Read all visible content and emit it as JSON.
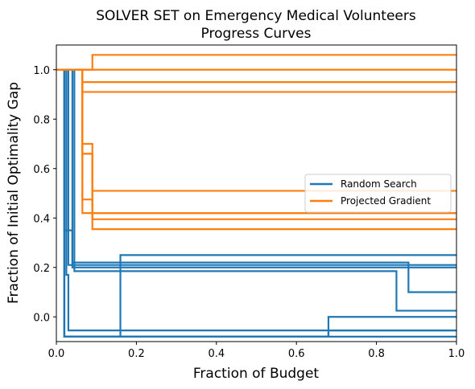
{
  "chart_data": {
    "type": "line",
    "title_line1": "SOLVER SET on Emergency Medical Volunteers",
    "title_line2": "Progress Curves",
    "xlabel": "Fraction of Budget",
    "ylabel": "Fraction of Initial Optimality Gap",
    "xlim": [
      0,
      1
    ],
    "ylim": [
      -0.1,
      1.1
    ],
    "x_ticks": [
      "0.0",
      "0.2",
      "0.4",
      "0.6",
      "0.8",
      "1.0"
    ],
    "x_tick_values": [
      0,
      0.2,
      0.4,
      0.6,
      0.8,
      1.0
    ],
    "y_ticks": [
      "0.0",
      "0.2",
      "0.4",
      "0.6",
      "0.8",
      "1.0"
    ],
    "y_tick_values": [
      0,
      0.2,
      0.4,
      0.6,
      0.8,
      1.0
    ],
    "grid": false,
    "legend_position": "center-right",
    "series": [
      {
        "name": "Random Search",
        "color": "#1f77b4",
        "curves": [
          [
            [
              0,
              1.0
            ],
            [
              0.02,
              1.0
            ],
            [
              0.02,
              -0.08
            ],
            [
              0.4,
              -0.08
            ],
            [
              0.4,
              -0.08
            ],
            [
              1.0,
              -0.08
            ]
          ],
          [
            [
              0,
              1.0
            ],
            [
              0.025,
              1.0
            ],
            [
              0.025,
              0.17
            ],
            [
              0.03,
              0.17
            ],
            [
              0.03,
              -0.055
            ],
            [
              0.16,
              -0.055
            ],
            [
              0.16,
              -0.055
            ],
            [
              1.0,
              -0.055
            ]
          ],
          [
            [
              0,
              1.0
            ],
            [
              0.02,
              1.0
            ],
            [
              0.02,
              0.35
            ],
            [
              0.04,
              0.35
            ],
            [
              0.04,
              0.22
            ],
            [
              0.88,
              0.22
            ],
            [
              0.88,
              0.1
            ],
            [
              1.0,
              0.1
            ]
          ],
          [
            [
              0,
              1.0
            ],
            [
              0.03,
              1.0
            ],
            [
              0.03,
              0.21
            ],
            [
              1.0,
              0.21
            ]
          ],
          [
            [
              0,
              1.0
            ],
            [
              0.04,
              1.0
            ],
            [
              0.04,
              0.2
            ],
            [
              0.88,
              0.2
            ],
            [
              1.0,
              0.2
            ]
          ],
          [
            [
              0,
              1.0
            ],
            [
              0.045,
              1.0
            ],
            [
              0.045,
              0.185
            ],
            [
              0.85,
              0.185
            ],
            [
              0.85,
              0.025
            ],
            [
              1.0,
              0.025
            ]
          ],
          [
            [
              0,
              1.0
            ],
            [
              0.02,
              1.0
            ],
            [
              0.02,
              -0.08
            ],
            [
              0.16,
              -0.08
            ],
            [
              0.16,
              0.25
            ],
            [
              1.0,
              0.25
            ]
          ],
          [
            [
              0,
              1.0
            ],
            [
              0.02,
              1.0
            ],
            [
              0.02,
              -0.08
            ],
            [
              0.68,
              -0.08
            ],
            [
              0.68,
              0.0
            ],
            [
              1.0,
              0.0
            ]
          ],
          [
            [
              0,
              1.0
            ],
            [
              0.02,
              1.0
            ],
            [
              0.02,
              -0.08
            ],
            [
              0.68,
              -0.08
            ],
            [
              0.68,
              -0.055
            ],
            [
              1.0,
              -0.055
            ]
          ]
        ]
      },
      {
        "name": "Projected Gradient",
        "color": "#ff7f0e",
        "curves": [
          [
            [
              0,
              1.0
            ],
            [
              0.09,
              1.0
            ],
            [
              0.09,
              1.06
            ],
            [
              1.0,
              1.06
            ]
          ],
          [
            [
              0,
              1.0
            ],
            [
              1.0,
              1.0
            ]
          ],
          [
            [
              0,
              1.0
            ],
            [
              0.065,
              1.0
            ],
            [
              0.065,
              0.95
            ],
            [
              1.0,
              0.95
            ]
          ],
          [
            [
              0,
              1.0
            ],
            [
              0.065,
              1.0
            ],
            [
              0.065,
              0.91
            ],
            [
              1.0,
              0.91
            ]
          ],
          [
            [
              0,
              1.0
            ],
            [
              0.065,
              1.0
            ],
            [
              0.065,
              0.7
            ],
            [
              0.09,
              0.7
            ],
            [
              0.09,
              0.51
            ],
            [
              1.0,
              0.51
            ]
          ],
          [
            [
              0,
              1.0
            ],
            [
              0.065,
              1.0
            ],
            [
              0.065,
              0.66
            ],
            [
              0.09,
              0.66
            ],
            [
              0.09,
              0.42
            ],
            [
              1.0,
              0.42
            ]
          ],
          [
            [
              0,
              1.0
            ],
            [
              0.065,
              1.0
            ],
            [
              0.065,
              0.42
            ],
            [
              1.0,
              0.42
            ]
          ],
          [
            [
              0,
              1.0
            ],
            [
              0.065,
              1.0
            ],
            [
              0.065,
              0.475
            ],
            [
              0.09,
              0.475
            ],
            [
              0.09,
              0.395
            ],
            [
              1.0,
              0.395
            ]
          ],
          [
            [
              0,
              1.0
            ],
            [
              0.065,
              1.0
            ],
            [
              0.065,
              0.66
            ],
            [
              0.09,
              0.66
            ],
            [
              0.09,
              0.355
            ],
            [
              1.0,
              0.355
            ]
          ]
        ]
      }
    ]
  }
}
